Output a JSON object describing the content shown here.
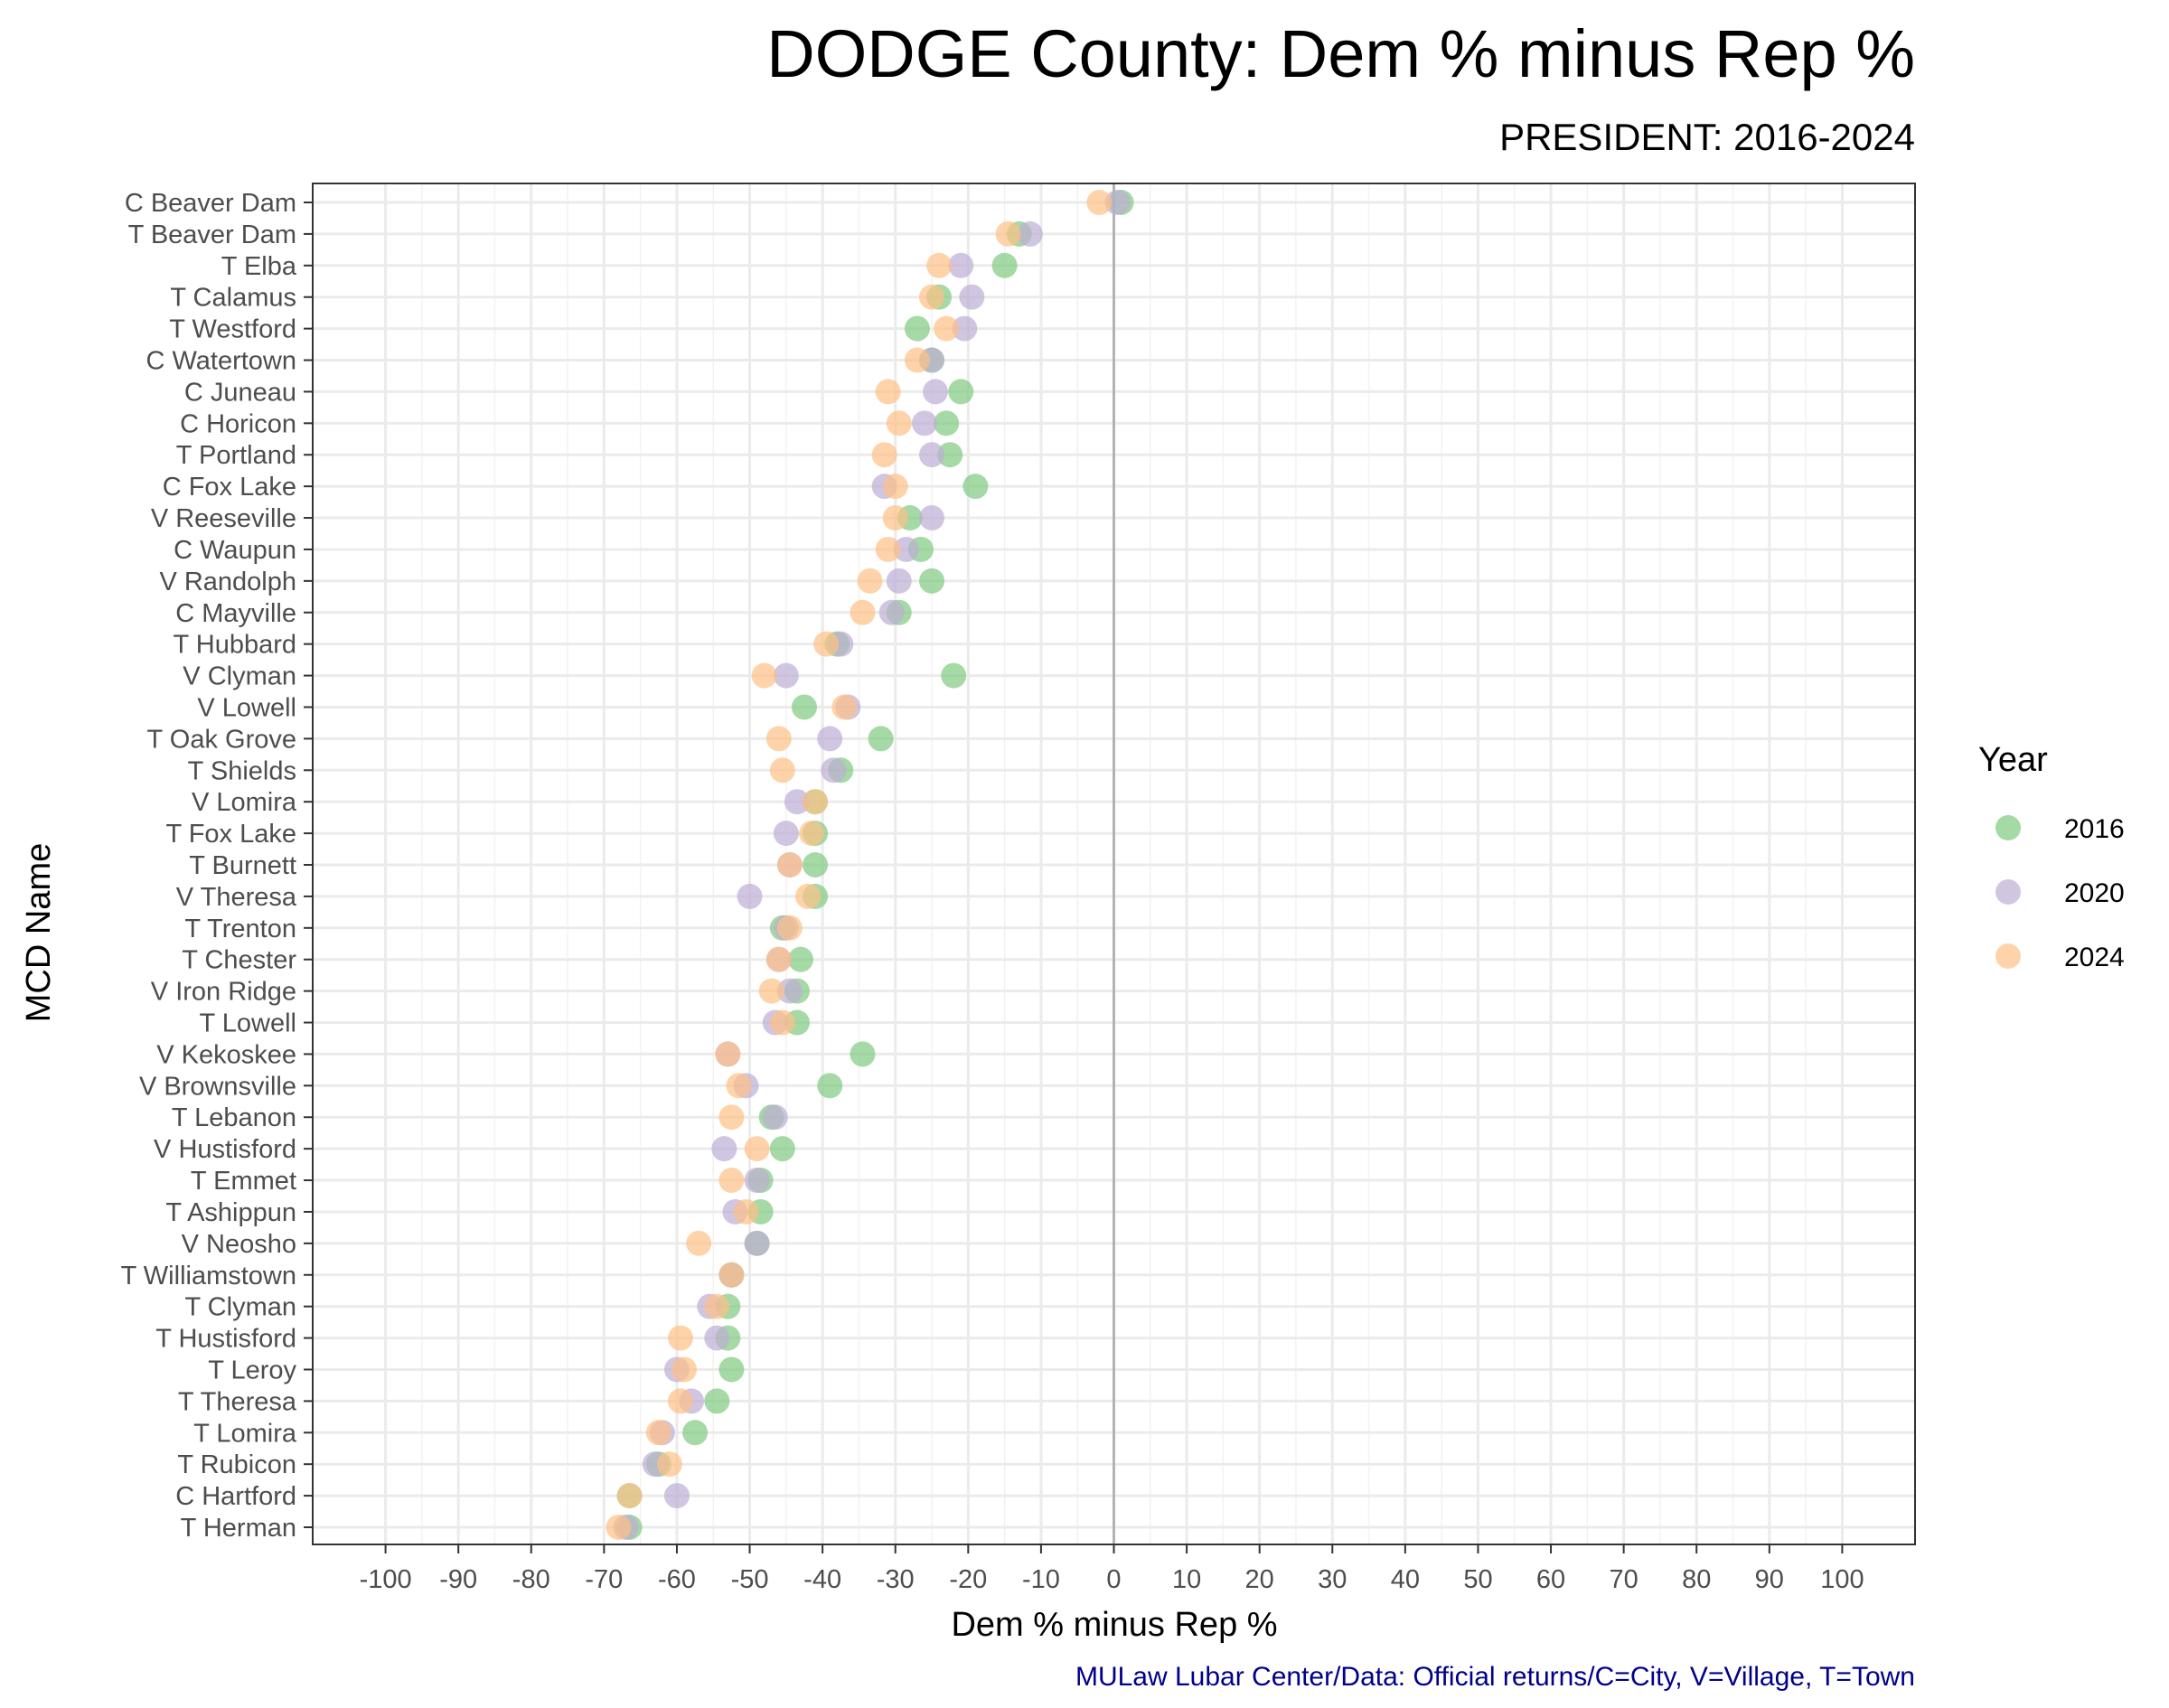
{
  "chart_data": {
    "type": "scatter",
    "title": "DODGE County: Dem % minus Rep %",
    "subtitle": "PRESIDENT: 2016-2024",
    "xlabel": "Dem % minus Rep %",
    "ylabel": "MCD Name",
    "caption": "MULaw Lubar Center/Data: Official returns/C=City, V=Village, T=Town",
    "xlim": [
      -110,
      110
    ],
    "x_ticks": [
      -100,
      -90,
      -80,
      -70,
      -60,
      -50,
      -40,
      -30,
      -20,
      -10,
      0,
      10,
      20,
      30,
      40,
      50,
      60,
      70,
      80,
      90,
      100
    ],
    "x_tick_labels": [
      "-100",
      "-90",
      "-80",
      "-70",
      "-60",
      "-50",
      "-40",
      "-30",
      "-20",
      "-10",
      "0",
      "10",
      "20",
      "30",
      "40",
      "50",
      "60",
      "70",
      "80",
      "90",
      "100"
    ],
    "grid": true,
    "reference_line_x": 0,
    "legend": {
      "title": "Year",
      "position": "right",
      "entries": [
        {
          "label": "2016",
          "color": "#7fc97f"
        },
        {
          "label": "2020",
          "color": "#beaed4"
        },
        {
          "label": "2024",
          "color": "#fdc086"
        }
      ]
    },
    "categories": [
      "C Beaver Dam",
      "T Beaver Dam",
      "T Elba",
      "T Calamus",
      "T Westford",
      "C Watertown",
      "C Juneau",
      "C Horicon",
      "T Portland",
      "C Fox Lake",
      "V Reeseville",
      "C Waupun",
      "V Randolph",
      "C Mayville",
      "T Hubbard",
      "V Clyman",
      "V Lowell",
      "T Oak Grove",
      "T Shields",
      "V Lomira",
      "T Fox Lake",
      "T Burnett",
      "V Theresa",
      "T Trenton",
      "T Chester",
      "V Iron Ridge",
      "T Lowell",
      "V Kekoskee",
      "V Brownsville",
      "T Lebanon",
      "V Hustisford",
      "T Emmet",
      "T Ashippun",
      "V Neosho",
      "T Williamstown",
      "T Clyman",
      "T Hustisford",
      "T Leroy",
      "T Theresa",
      "T Lomira",
      "T Rubicon",
      "C Hartford",
      "T Herman"
    ],
    "series": [
      {
        "name": "2016",
        "color": "#7fc97f",
        "values": [
          1,
          -13,
          -15,
          -24,
          -27,
          -25,
          -21,
          -23,
          -22.5,
          -19,
          -28,
          -26.5,
          -25,
          -29.5,
          -38,
          -22,
          -42.5,
          -32,
          -37.5,
          -41,
          -41,
          -41,
          -41,
          -45.5,
          -43,
          -43.5,
          -43.5,
          -34.5,
          -39,
          -47,
          -45.5,
          -48.5,
          -48.5,
          -49,
          -52.5,
          -53,
          -53,
          -52.5,
          -54.5,
          -57.5,
          -62.5,
          -66.5,
          -66.5
        ]
      },
      {
        "name": "2020",
        "color": "#beaed4",
        "values": [
          0.5,
          -11.5,
          -21,
          -19.5,
          -20.5,
          -25,
          -24.5,
          -26,
          -25,
          -31.5,
          -25,
          -28.5,
          -29.5,
          -30.5,
          -37.5,
          -45,
          -36.5,
          -39,
          -38.5,
          -43.5,
          -45,
          -44.5,
          -50,
          -45,
          -46,
          -44.5,
          -46.5,
          -53,
          -50.5,
          -46.5,
          -53.5,
          -49,
          -52,
          -49,
          -52.5,
          -55.5,
          -54.5,
          -60,
          -58,
          -62,
          -63,
          -60,
          -67
        ]
      },
      {
        "name": "2024",
        "color": "#fdc086",
        "values": [
          -2,
          -14.5,
          -24,
          -25,
          -23,
          -27,
          -31,
          -29.5,
          -31.5,
          -30,
          -30,
          -31,
          -33.5,
          -34.5,
          -39.5,
          -48,
          -37,
          -46,
          -45.5,
          -41,
          -41.5,
          -44.5,
          -42,
          -44.5,
          -46,
          -47,
          -45.5,
          -53,
          -51.5,
          -52.5,
          -49,
          -52.5,
          -50.5,
          -57,
          -52.5,
          -54.5,
          -59.5,
          -59,
          -59.5,
          -62.5,
          -61,
          -66.5,
          -68
        ]
      }
    ]
  }
}
